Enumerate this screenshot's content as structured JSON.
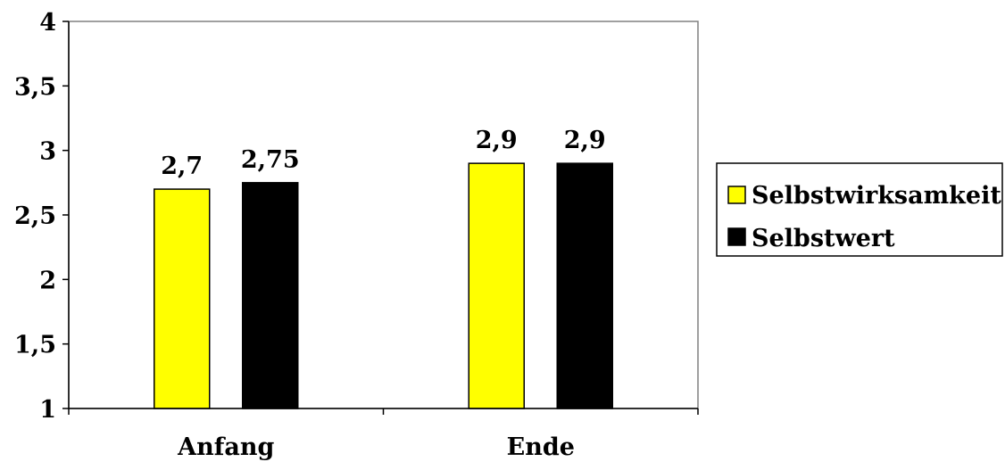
{
  "chart_data": {
    "type": "bar",
    "categories": [
      "Anfang",
      "Ende"
    ],
    "series": [
      {
        "name": "Selbstwirksamkeit",
        "values": [
          2.7,
          2.9
        ],
        "labels": [
          "2,7",
          "2,9"
        ],
        "color": "#ffff00"
      },
      {
        "name": "Selbstwert",
        "values": [
          2.75,
          2.9
        ],
        "labels": [
          "2,75",
          "2,9"
        ],
        "color": "#000000"
      }
    ],
    "ylim": [
      1,
      4
    ],
    "yticks": [
      1,
      1.5,
      2,
      2.5,
      3,
      3.5,
      4
    ],
    "ytick_labels": [
      "1",
      "1,5",
      "2",
      "2,5",
      "3",
      "3,5",
      "4"
    ],
    "grid": false,
    "legend_position": "right",
    "plot_border_color": "#808080"
  }
}
